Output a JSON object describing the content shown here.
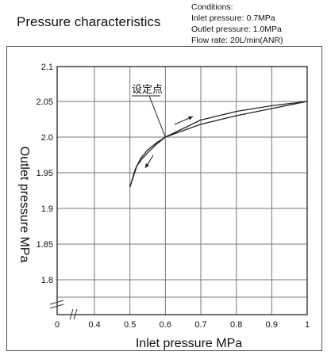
{
  "header": {
    "title": "Pressure characteristics",
    "conditions": [
      "Conditions:",
      "Inlet pressure: 0.7MPa",
      "Outlet pressure: 1.0MPa",
      "Flow rate: 20L/min(ANR)"
    ]
  },
  "chart_data": {
    "type": "line",
    "xlabel": "Inlet pressure MPa",
    "ylabel": "Outlet pressure MPa",
    "xlim": [
      0,
      1
    ],
    "ylim": [
      1.8,
      2.1
    ],
    "x_ticks": [
      "0",
      "0.4",
      "0.5",
      "0.6",
      "0.7",
      "0.8",
      "0.9",
      "1"
    ],
    "y_ticks": [
      "2.1",
      "2.05",
      "2.0",
      "1.95",
      "1.9",
      "1.85",
      "1.8"
    ],
    "axis_breaks": "both axes broken near origin",
    "grid": true,
    "annotation": {
      "text": "设定点",
      "x": 0.6,
      "y": 2.0
    },
    "series": [
      {
        "direction": "increasing",
        "x": [
          0.5,
          0.51,
          0.52,
          0.535,
          0.55,
          0.575,
          0.6,
          0.7,
          0.8,
          0.9,
          1.0
        ],
        "y": [
          1.93,
          1.945,
          1.96,
          1.97,
          1.978,
          1.99,
          2.0,
          2.018,
          2.03,
          2.04,
          2.05
        ]
      },
      {
        "direction": "decreasing",
        "x": [
          1.0,
          0.9,
          0.8,
          0.7,
          0.6,
          0.575,
          0.55,
          0.53,
          0.515,
          0.5
        ],
        "y": [
          2.05,
          2.044,
          2.036,
          2.024,
          2.0,
          1.992,
          1.982,
          1.97,
          1.955,
          1.93
        ]
      }
    ],
    "colors": {
      "line": "#222222",
      "grid": "#777777",
      "frame": "#333333"
    }
  }
}
